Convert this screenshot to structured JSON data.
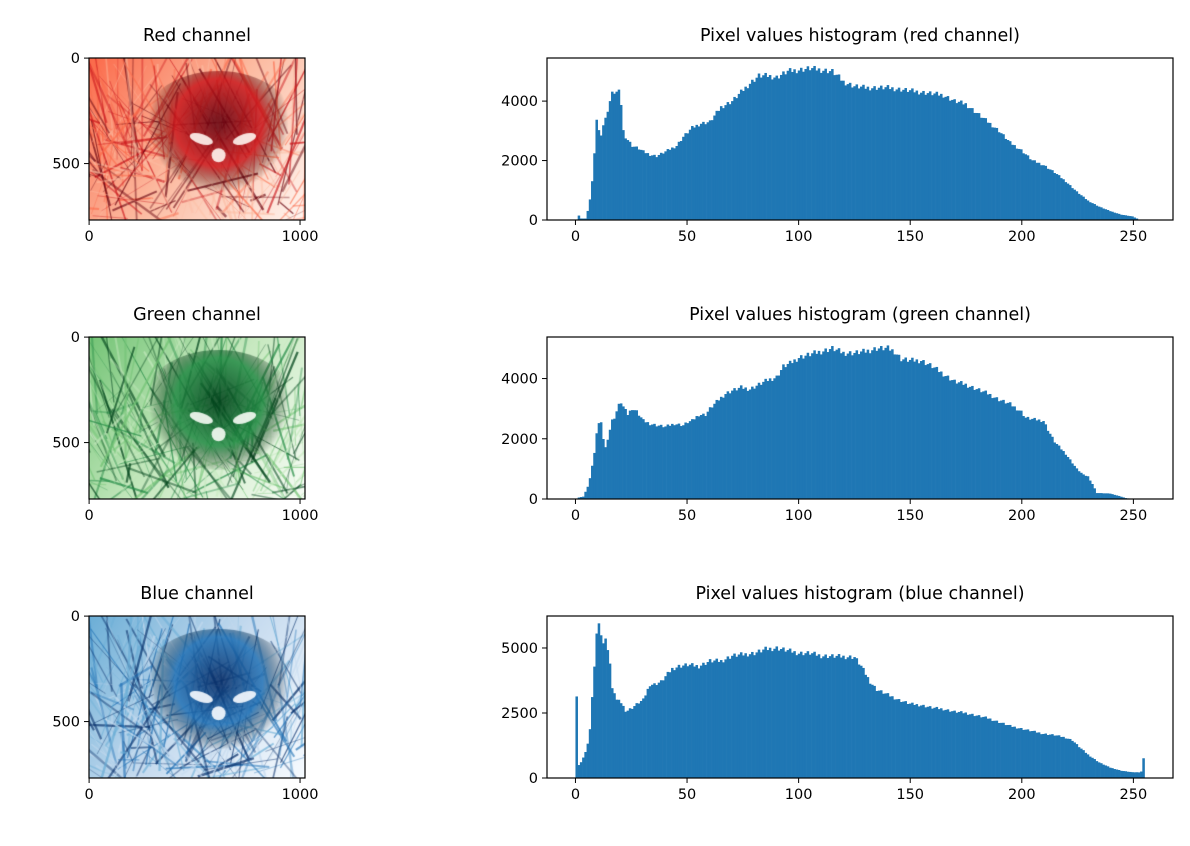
{
  "figure": {
    "bar_color": "#1f77b4"
  },
  "chart_data": [
    {
      "type": "image",
      "title": "Red channel",
      "cmap": [
        "#fff5f0",
        "#fcbba1",
        "#fb6a4a",
        "#cb181d",
        "#67000d"
      ],
      "image_size": [
        1024,
        768
      ],
      "xticks": [
        0,
        1000
      ],
      "yticks": [
        0,
        500
      ]
    },
    {
      "type": "bar",
      "title": "Pixel values histogram (red channel)",
      "xlim": [
        -12.75,
        267.75
      ],
      "ylim": [
        0,
        5450
      ],
      "xticks": [
        0,
        50,
        100,
        150,
        200,
        250
      ],
      "yticks": [
        0,
        2000,
        4000
      ],
      "profile": [
        [
          0,
          0
        ],
        [
          1,
          150
        ],
        [
          2,
          50
        ],
        [
          4,
          50
        ],
        [
          5,
          300
        ],
        [
          6,
          700
        ],
        [
          7,
          1300
        ],
        [
          8,
          2200
        ],
        [
          9,
          3400
        ],
        [
          10,
          3000
        ],
        [
          11,
          2900
        ],
        [
          12,
          3200
        ],
        [
          13,
          3400
        ],
        [
          14,
          3700
        ],
        [
          15,
          4000
        ],
        [
          16,
          4250
        ],
        [
          17,
          4300
        ],
        [
          19,
          4300
        ],
        [
          20,
          3900
        ],
        [
          21,
          3000
        ],
        [
          22,
          2800
        ],
        [
          25,
          2500
        ],
        [
          28,
          2400
        ],
        [
          30,
          2300
        ],
        [
          33,
          2200
        ],
        [
          36,
          2150
        ],
        [
          40,
          2300
        ],
        [
          45,
          2500
        ],
        [
          48,
          2800
        ],
        [
          52,
          3100
        ],
        [
          56,
          3250
        ],
        [
          60,
          3300
        ],
        [
          62,
          3500
        ],
        [
          65,
          3800
        ],
        [
          70,
          4000
        ],
        [
          74,
          4300
        ],
        [
          78,
          4600
        ],
        [
          82,
          4850
        ],
        [
          86,
          4850
        ],
        [
          90,
          4800
        ],
        [
          95,
          5000
        ],
        [
          100,
          5050
        ],
        [
          105,
          5100
        ],
        [
          110,
          5050
        ],
        [
          115,
          5000
        ],
        [
          118,
          4800
        ],
        [
          120,
          4650
        ],
        [
          125,
          4500
        ],
        [
          130,
          4450
        ],
        [
          140,
          4450
        ],
        [
          145,
          4400
        ],
        [
          150,
          4350
        ],
        [
          155,
          4300
        ],
        [
          160,
          4250
        ],
        [
          165,
          4200
        ],
        [
          170,
          4000
        ],
        [
          175,
          3900
        ],
        [
          180,
          3600
        ],
        [
          185,
          3300
        ],
        [
          190,
          3000
        ],
        [
          195,
          2600
        ],
        [
          200,
          2350
        ],
        [
          205,
          2000
        ],
        [
          210,
          1850
        ],
        [
          215,
          1600
        ],
        [
          220,
          1300
        ],
        [
          225,
          950
        ],
        [
          230,
          650
        ],
        [
          235,
          450
        ],
        [
          240,
          300
        ],
        [
          245,
          180
        ],
        [
          250,
          120
        ],
        [
          252,
          50
        ],
        [
          253,
          0
        ],
        [
          255,
          0
        ]
      ]
    },
    {
      "type": "image",
      "title": "Green channel",
      "cmap": [
        "#f7fcf5",
        "#c7e9c0",
        "#74c476",
        "#238b45",
        "#00441b"
      ],
      "image_size": [
        1024,
        768
      ],
      "xticks": [
        0,
        1000
      ],
      "yticks": [
        0,
        500
      ]
    },
    {
      "type": "bar",
      "title": "Pixel values histogram (green channel)",
      "xlim": [
        -12.75,
        267.75
      ],
      "ylim": [
        0,
        5380
      ],
      "xticks": [
        0,
        50,
        100,
        150,
        200,
        250
      ],
      "yticks": [
        0,
        2000,
        4000
      ],
      "profile": [
        [
          0,
          0
        ],
        [
          1,
          50
        ],
        [
          3,
          80
        ],
        [
          5,
          400
        ],
        [
          6,
          700
        ],
        [
          7,
          1100
        ],
        [
          8,
          1500
        ],
        [
          9,
          2200
        ],
        [
          10,
          2500
        ],
        [
          11,
          2600
        ],
        [
          12,
          2000
        ],
        [
          13,
          1700
        ],
        [
          14,
          2000
        ],
        [
          15,
          2300
        ],
        [
          16,
          2600
        ],
        [
          17,
          2700
        ],
        [
          18,
          2900
        ],
        [
          19,
          3100
        ],
        [
          20,
          3200
        ],
        [
          21,
          3050
        ],
        [
          22,
          3050
        ],
        [
          23,
          2800
        ],
        [
          25,
          3000
        ],
        [
          27,
          2900
        ],
        [
          30,
          2600
        ],
        [
          33,
          2500
        ],
        [
          36,
          2450
        ],
        [
          40,
          2400
        ],
        [
          44,
          2500
        ],
        [
          48,
          2450
        ],
        [
          50,
          2550
        ],
        [
          52,
          2600
        ],
        [
          55,
          2800
        ],
        [
          58,
          2800
        ],
        [
          60,
          3000
        ],
        [
          64,
          3300
        ],
        [
          67,
          3500
        ],
        [
          70,
          3600
        ],
        [
          74,
          3700
        ],
        [
          78,
          3650
        ],
        [
          82,
          3800
        ],
        [
          86,
          3950
        ],
        [
          90,
          4050
        ],
        [
          93,
          4400
        ],
        [
          96,
          4500
        ],
        [
          100,
          4700
        ],
        [
          105,
          4800
        ],
        [
          110,
          4900
        ],
        [
          115,
          5000
        ],
        [
          120,
          4850
        ],
        [
          125,
          4850
        ],
        [
          130,
          4900
        ],
        [
          135,
          5000
        ],
        [
          140,
          5000
        ],
        [
          143,
          4900
        ],
        [
          146,
          4650
        ],
        [
          150,
          4600
        ],
        [
          155,
          4600
        ],
        [
          160,
          4400
        ],
        [
          165,
          4150
        ],
        [
          170,
          3900
        ],
        [
          175,
          3800
        ],
        [
          180,
          3650
        ],
        [
          185,
          3500
        ],
        [
          190,
          3300
        ],
        [
          195,
          3150
        ],
        [
          200,
          2900
        ],
        [
          202,
          2700
        ],
        [
          205,
          2650
        ],
        [
          210,
          2600
        ],
        [
          212,
          2300
        ],
        [
          215,
          1900
        ],
        [
          220,
          1500
        ],
        [
          225,
          1000
        ],
        [
          228,
          800
        ],
        [
          230,
          750
        ],
        [
          232,
          500
        ],
        [
          234,
          200
        ],
        [
          240,
          180
        ],
        [
          244,
          100
        ],
        [
          247,
          30
        ],
        [
          250,
          0
        ],
        [
          255,
          0
        ]
      ]
    },
    {
      "type": "image",
      "title": "Blue channel",
      "cmap": [
        "#f7fbff",
        "#c6dbef",
        "#6baed6",
        "#2171b5",
        "#08306b"
      ],
      "image_size": [
        1024,
        768
      ],
      "xticks": [
        0,
        1000
      ],
      "yticks": [
        0,
        500
      ]
    },
    {
      "type": "bar",
      "title": "Pixel values histogram (blue channel)",
      "xlim": [
        -12.75,
        267.75
      ],
      "ylim": [
        0,
        6230
      ],
      "xticks": [
        0,
        50,
        100,
        150,
        200,
        250
      ],
      "yticks": [
        0,
        2500,
        5000
      ],
      "profile": [
        [
          0,
          3200
        ],
        [
          1,
          500
        ],
        [
          2,
          600
        ],
        [
          3,
          800
        ],
        [
          4,
          1000
        ],
        [
          5,
          1300
        ],
        [
          6,
          1900
        ],
        [
          7,
          3100
        ],
        [
          8,
          4200
        ],
        [
          9,
          5600
        ],
        [
          10,
          5900
        ],
        [
          11,
          5600
        ],
        [
          12,
          5200
        ],
        [
          13,
          5300
        ],
        [
          14,
          5000
        ],
        [
          15,
          4400
        ],
        [
          16,
          3400
        ],
        [
          17,
          3300
        ],
        [
          18,
          3000
        ],
        [
          20,
          2900
        ],
        [
          22,
          2600
        ],
        [
          23,
          2600
        ],
        [
          25,
          2700
        ],
        [
          28,
          2900
        ],
        [
          30,
          3000
        ],
        [
          33,
          3600
        ],
        [
          35,
          3600
        ],
        [
          38,
          3700
        ],
        [
          40,
          3900
        ],
        [
          43,
          4200
        ],
        [
          46,
          4300
        ],
        [
          50,
          4350
        ],
        [
          55,
          4300
        ],
        [
          60,
          4500
        ],
        [
          65,
          4500
        ],
        [
          70,
          4700
        ],
        [
          75,
          4750
        ],
        [
          80,
          4800
        ],
        [
          85,
          4950
        ],
        [
          90,
          5000
        ],
        [
          95,
          4900
        ],
        [
          100,
          4800
        ],
        [
          105,
          4800
        ],
        [
          110,
          4700
        ],
        [
          125,
          4650
        ],
        [
          128,
          4300
        ],
        [
          130,
          4000
        ],
        [
          132,
          3700
        ],
        [
          135,
          3400
        ],
        [
          140,
          3200
        ],
        [
          145,
          3000
        ],
        [
          150,
          2850
        ],
        [
          155,
          2800
        ],
        [
          160,
          2700
        ],
        [
          165,
          2650
        ],
        [
          170,
          2550
        ],
        [
          175,
          2500
        ],
        [
          180,
          2400
        ],
        [
          185,
          2300
        ],
        [
          190,
          2150
        ],
        [
          195,
          2000
        ],
        [
          200,
          1900
        ],
        [
          205,
          1800
        ],
        [
          210,
          1700
        ],
        [
          215,
          1650
        ],
        [
          220,
          1550
        ],
        [
          223,
          1450
        ],
        [
          226,
          1200
        ],
        [
          230,
          900
        ],
        [
          235,
          600
        ],
        [
          240,
          400
        ],
        [
          245,
          280
        ],
        [
          250,
          220
        ],
        [
          253,
          220
        ],
        [
          254,
          250
        ],
        [
          255,
          750
        ]
      ]
    }
  ]
}
